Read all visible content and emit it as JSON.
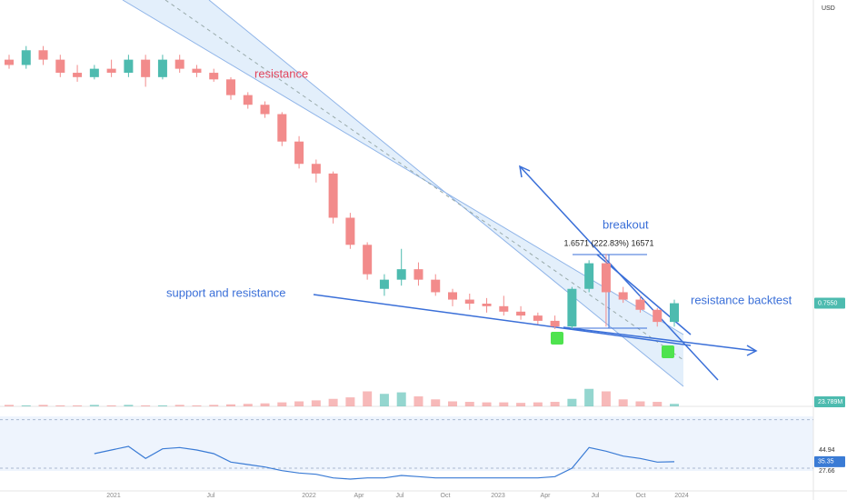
{
  "chart_data": {
    "type": "candlestick",
    "currency": "USD",
    "log_scale": true,
    "ylim": [
      0.2,
      96
    ],
    "up_color": "#4dbbaf",
    "down_color": "#f28b8b",
    "open": [
      37,
      34,
      43,
      37,
      30,
      28,
      32,
      30,
      37,
      28,
      37,
      32,
      30,
      27,
      21,
      18,
      15.5,
      10,
      7.0,
      6.0,
      2.96,
      1.92,
      0.95,
      1.1,
      1.3,
      1.1,
      0.9,
      0.8,
      0.75,
      0.72,
      0.66,
      0.62,
      0.57,
      0.52,
      0.95,
      1.43,
      0.9,
      0.8,
      0.68,
      0.56
    ],
    "high": [
      40,
      46,
      46,
      40,
      34,
      34,
      37,
      40,
      40,
      40,
      40,
      34,
      32,
      28,
      22,
      19,
      16,
      10.9,
      7.5,
      6.2,
      3.2,
      2.0,
      1.2,
      1.8,
      1.45,
      1.2,
      0.95,
      0.88,
      0.82,
      0.85,
      0.72,
      0.65,
      0.62,
      0.98,
      1.5,
      1.66,
      0.98,
      0.85,
      0.7,
      0.8
    ],
    "low": [
      32,
      32,
      34,
      28,
      26,
      27,
      28,
      28,
      24,
      27,
      30,
      28,
      26,
      19.5,
      16.9,
      14.6,
      9.3,
      6.5,
      5.2,
      2.7,
      1.8,
      1.1,
      0.85,
      1.0,
      1.0,
      0.85,
      0.72,
      0.68,
      0.65,
      0.62,
      0.58,
      0.54,
      0.5,
      0.5,
      0.9,
      0.52,
      0.76,
      0.65,
      0.52,
      0.52
    ],
    "close": [
      34,
      43,
      37,
      30,
      28,
      32,
      30,
      37,
      28,
      37,
      32,
      30,
      27,
      21,
      18,
      15.5,
      10,
      7.0,
      6.0,
      2.96,
      1.92,
      1.2,
      1.1,
      1.3,
      1.1,
      0.9,
      0.8,
      0.75,
      0.72,
      0.66,
      0.62,
      0.57,
      0.52,
      0.95,
      1.43,
      0.9,
      0.8,
      0.68,
      0.56,
      0.755
    ],
    "volume": [
      3,
      2,
      3,
      2,
      2,
      3,
      2,
      3,
      2,
      2,
      3,
      2,
      3,
      4,
      5,
      6,
      8,
      10,
      12,
      15,
      18,
      30,
      25,
      28,
      20,
      14,
      10,
      9,
      8,
      8,
      7,
      8,
      9,
      15,
      35,
      30,
      14,
      10,
      9,
      5
    ],
    "volume_lim": [
      0,
      40
    ],
    "rsi": [
      null,
      null,
      null,
      null,
      null,
      42,
      45,
      48,
      38,
      46,
      47,
      45,
      42,
      35,
      33,
      31,
      28,
      26,
      25,
      22,
      21,
      22,
      22,
      24,
      23,
      22,
      22,
      22,
      22,
      22,
      22,
      22,
      23,
      30,
      47,
      44,
      40,
      38,
      35,
      35.35
    ],
    "rsi_lim": [
      15,
      75
    ],
    "rsi_levels": [
      44.94,
      27.66
    ],
    "rsi_band": [
      70,
      30
    ],
    "last_price_label": "0.7550",
    "volume_label": "23.789M",
    "rsi_label": "35.35",
    "x_labels": [
      "2021",
      "Jul",
      "2022",
      "Apr",
      "Jul",
      "Oct",
      "2023",
      "Apr",
      "Jul",
      "Oct",
      "2024"
    ],
    "annotations": {
      "resistance": "resistance",
      "breakout": "breakout",
      "support": "support and resistance",
      "backtest": "resistance backtest",
      "measure": "1.6571 (222.83%) 16571"
    }
  }
}
